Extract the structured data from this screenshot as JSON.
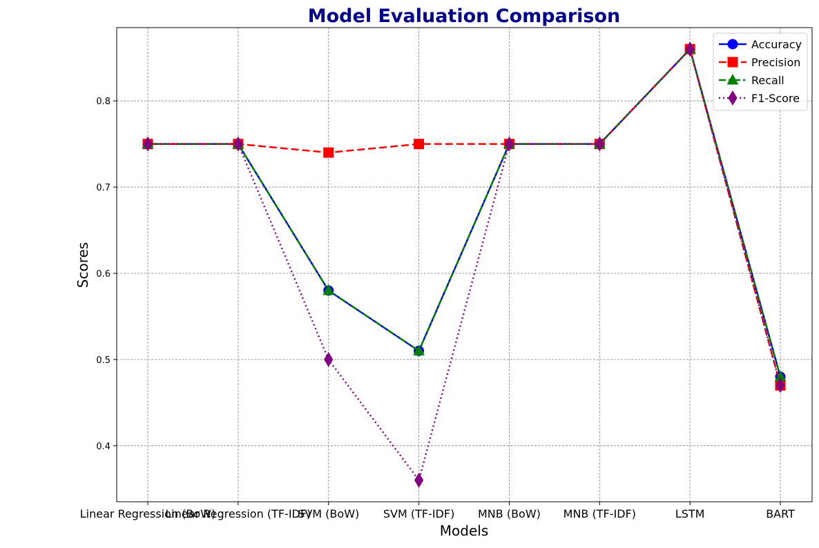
{
  "chart_data": {
    "type": "line",
    "title": "Model Evaluation Comparison",
    "xlabel": "Models",
    "ylabel": "Scores",
    "categories": [
      "Linear Regression (BoW)",
      "Linear Regression (TF-IDF)",
      "SVM (BoW)",
      "SVM (TF-IDF)",
      "MNB (BoW)",
      "MNB (TF-IDF)",
      "LSTM",
      "BART"
    ],
    "ylim": [
      0.335,
      0.885
    ],
    "yticks": [
      "0.4",
      "0.5",
      "0.6",
      "0.7",
      "0.8"
    ],
    "grid": true,
    "legend_position": "top-right",
    "series": [
      {
        "name": "Accuracy",
        "values": [
          0.75,
          0.75,
          0.58,
          0.51,
          0.75,
          0.75,
          0.86,
          0.48
        ],
        "color": "#0000ff",
        "marker": "circle",
        "line": "solid"
      },
      {
        "name": "Precision",
        "values": [
          0.75,
          0.75,
          0.74,
          0.75,
          0.75,
          0.75,
          0.86,
          0.47
        ],
        "color": "#ff0000",
        "marker": "square",
        "line": "dashed"
      },
      {
        "name": "Recall",
        "values": [
          0.75,
          0.75,
          0.58,
          0.51,
          0.75,
          0.75,
          0.86,
          0.48
        ],
        "color": "#008000",
        "marker": "triangle",
        "line": "dashdot"
      },
      {
        "name": "F1-Score",
        "values": [
          0.75,
          0.75,
          0.5,
          0.36,
          0.75,
          0.75,
          0.86,
          0.47
        ],
        "color": "#800080",
        "marker": "diamond",
        "line": "dotted"
      }
    ],
    "title_color": "#00008b"
  }
}
